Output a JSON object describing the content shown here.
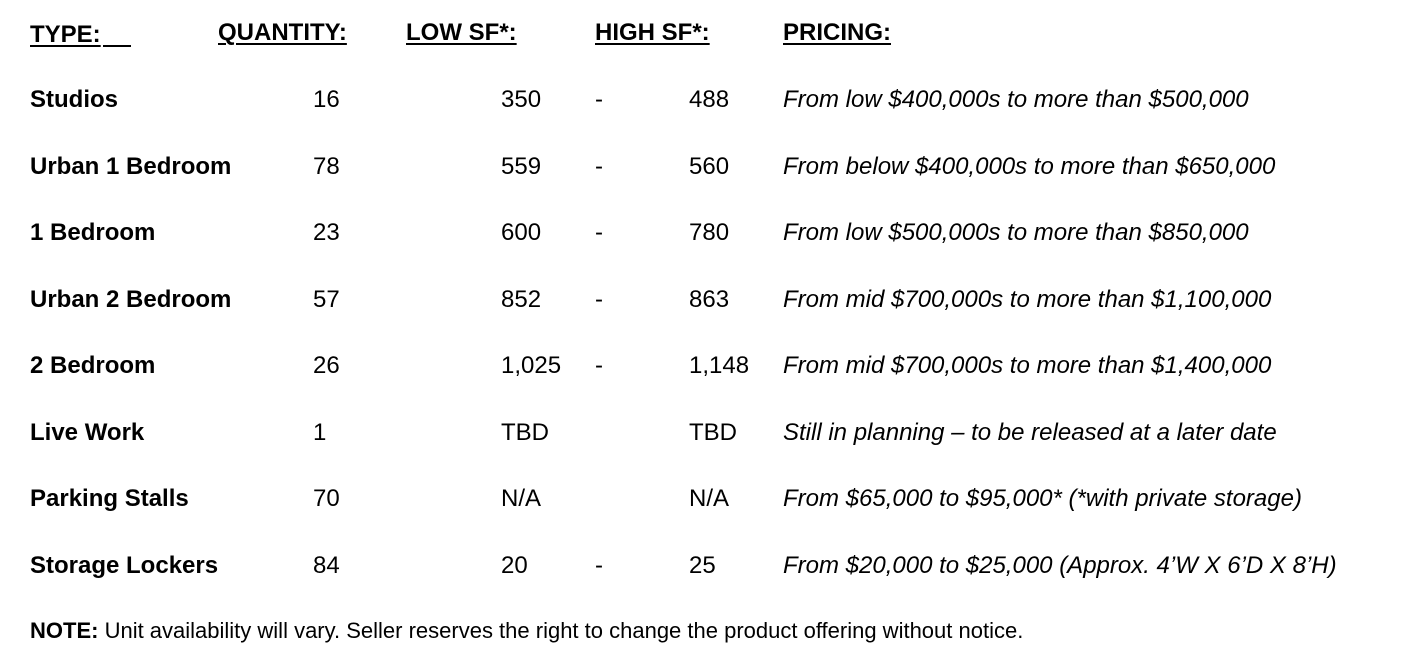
{
  "headers": {
    "type": "TYPE:",
    "quantity": "QUANTITY:",
    "low_sf": "LOW SF*:",
    "high_sf": "HIGH SF*:",
    "pricing": "PRICING:"
  },
  "rows": [
    {
      "type": "Studios",
      "quantity": "16",
      "low": "350",
      "dash": "-",
      "high": "488",
      "pricing": "From low $400,000s to more than $500,000"
    },
    {
      "type": "Urban 1 Bedroom",
      "quantity": "78",
      "low": "559",
      "dash": "-",
      "high": "560",
      "pricing": "From below $400,000s to more than $650,000"
    },
    {
      "type": "1 Bedroom",
      "quantity": "23",
      "low": "600",
      "dash": "-",
      "high": "780",
      "pricing": "From low $500,000s to more than $850,000"
    },
    {
      "type": "Urban 2 Bedroom",
      "quantity": "57",
      "low": "852",
      "dash": "-",
      "high": "863",
      "pricing": "From mid $700,000s to more than $1,100,000"
    },
    {
      "type": "2 Bedroom",
      "quantity": "26",
      "low": "1,025",
      "dash": "-",
      "high": "1,148",
      "pricing": "From mid $700,000s to more than $1,400,000"
    },
    {
      "type": "Live Work",
      "quantity": "1",
      "low": "TBD",
      "dash": "",
      "high": "TBD",
      "pricing": "Still in planning – to be released at a later date"
    },
    {
      "type": "Parking Stalls",
      "quantity": "70",
      "low": "N/A",
      "dash": "",
      "high": "N/A",
      "pricing": "From $65,000 to $95,000* (*with private storage)"
    },
    {
      "type": "Storage Lockers",
      "quantity": "84",
      "low": "20",
      "dash": "-",
      "high": "25",
      "pricing": "From $20,000 to $25,000 (Approx. 4’W X 6’D X 8’H)"
    }
  ],
  "note": {
    "label": "NOTE:",
    "text": " Unit availability will vary.  Seller reserves the right to change the product offering without notice."
  }
}
